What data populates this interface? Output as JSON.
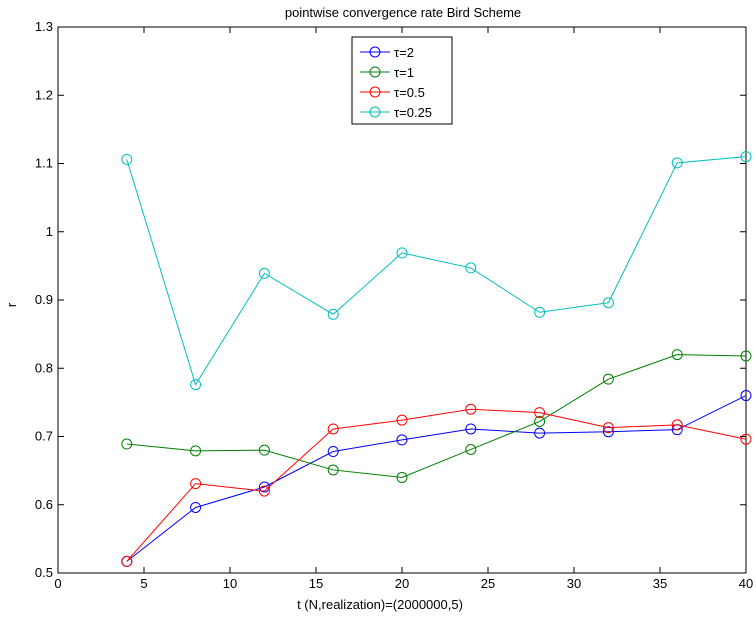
{
  "chart_data": {
    "type": "line",
    "title": "pointwise convergence rate Bird Scheme",
    "xlabel": "t   (N,realization)=(2000000,5)",
    "ylabel": "r",
    "xlim": [
      0,
      40
    ],
    "ylim": [
      0.5,
      1.3
    ],
    "x_ticks": [
      0,
      5,
      10,
      15,
      20,
      25,
      30,
      35,
      40
    ],
    "x_tick_labels": [
      "0",
      "5",
      "10",
      "15",
      "20",
      "25",
      "30",
      "35",
      "40"
    ],
    "y_ticks": [
      0.5,
      0.6,
      0.7,
      0.8,
      0.9,
      1.0,
      1.1,
      1.2,
      1.3
    ],
    "y_tick_labels": [
      "0.5",
      "0.6",
      "0.7",
      "0.8",
      "0.9",
      "1",
      "1.1",
      "1.2",
      "1.3"
    ],
    "grid": false,
    "legend_position": "top-center",
    "marker": "circle",
    "x": [
      4,
      8,
      12,
      16,
      20,
      24,
      28,
      32,
      36,
      40
    ],
    "series": [
      {
        "name": "τ=2",
        "color": "#0000ff",
        "values": [
          0.517,
          0.596,
          0.626,
          0.678,
          0.695,
          0.711,
          0.705,
          0.707,
          0.71,
          0.76
        ]
      },
      {
        "name": "τ=1",
        "color": "#008000",
        "values": [
          0.689,
          0.679,
          0.68,
          0.651,
          0.64,
          0.681,
          0.722,
          0.784,
          0.82,
          0.818
        ]
      },
      {
        "name": "τ=0.5",
        "color": "#ff0000",
        "values": [
          0.517,
          0.631,
          0.62,
          0.711,
          0.724,
          0.74,
          0.735,
          0.713,
          0.717,
          0.696
        ]
      },
      {
        "name": "τ=0.25",
        "color": "#00bfbf",
        "values": [
          1.106,
          0.776,
          0.939,
          0.879,
          0.969,
          0.947,
          0.882,
          0.896,
          1.101,
          1.11
        ]
      }
    ]
  }
}
